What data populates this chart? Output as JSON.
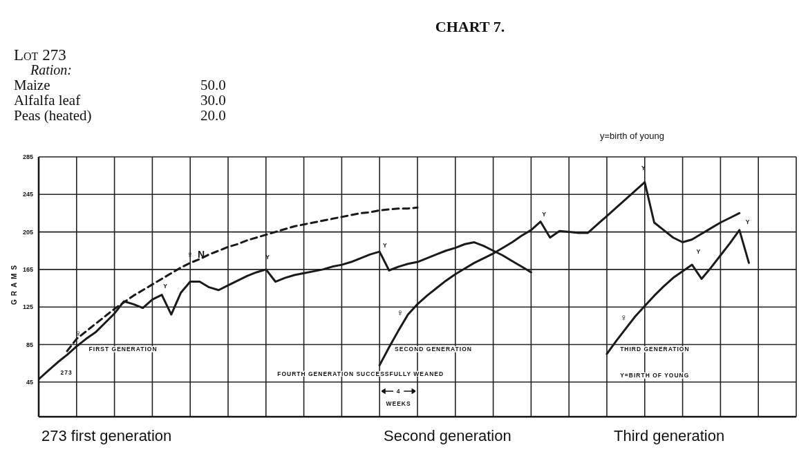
{
  "chart_data": {
    "type": "line",
    "title": "CHART 7.",
    "ylabel": "GRAMS",
    "categories": [
      null,
      null,
      null,
      null,
      null,
      null,
      null,
      null,
      null,
      null,
      null,
      null,
      null,
      null,
      null,
      null,
      null,
      null,
      null,
      null,
      null,
      null,
      null,
      null,
      null,
      null,
      null,
      null,
      null,
      null,
      null,
      null,
      null,
      null,
      null,
      null,
      null,
      null,
      null,
      null,
      null,
      null,
      null,
      null,
      null,
      null,
      null,
      null,
      null,
      null,
      null,
      null,
      null,
      null,
      null,
      null,
      null,
      null,
      null,
      null,
      null,
      null,
      null,
      null,
      null,
      null,
      null,
      null,
      null,
      null,
      null,
      null,
      null,
      null,
      null,
      null,
      null,
      null,
      null,
      null,
      null
    ],
    "series": [
      {
        "color": "#1a1a1a",
        "values": [
          48,
          57,
          66,
          74,
          83,
          91,
          98,
          108,
          118,
          131,
          128,
          124,
          133,
          138,
          117,
          140,
          152,
          152,
          146,
          143,
          148,
          153,
          158,
          162,
          165,
          152,
          156,
          159,
          161,
          163,
          165,
          168,
          170,
          173,
          177,
          181,
          184,
          164,
          168,
          171,
          173,
          177,
          181,
          185,
          188,
          192,
          194,
          190,
          185,
          180,
          174,
          168,
          162,
          null,
          null,
          null,
          null,
          null,
          null,
          null,
          null,
          null,
          null,
          null,
          null,
          null,
          null,
          null,
          null,
          null,
          null,
          null,
          null,
          null,
          null,
          null,
          null,
          null,
          null,
          null,
          null
        ]
      },
      {
        "color": "#1a1a1a",
        "line_style": "dashed",
        "values": [
          null,
          null,
          null,
          78,
          91,
          99,
          107,
          115,
          123,
          130,
          137,
          143,
          149,
          155,
          161,
          167,
          172,
          176,
          181,
          185,
          189,
          192,
          196,
          199,
          202,
          205,
          208,
          211,
          213,
          215,
          217,
          219,
          221,
          223,
          225,
          226,
          228,
          229,
          230,
          230,
          231,
          null,
          null,
          null,
          null,
          null,
          null,
          null,
          null,
          null,
          null,
          null,
          null,
          null,
          null,
          null,
          null,
          null,
          null,
          null,
          null,
          null,
          null,
          null,
          null,
          null,
          null,
          null,
          null,
          null,
          null,
          null,
          null,
          null,
          null,
          null,
          null,
          null,
          null,
          null,
          null
        ]
      },
      {
        "color": "#1a1a1a",
        "values": [
          null,
          null,
          null,
          null,
          null,
          null,
          null,
          null,
          null,
          null,
          null,
          null,
          null,
          null,
          null,
          null,
          null,
          null,
          null,
          null,
          null,
          null,
          null,
          null,
          null,
          null,
          null,
          null,
          null,
          null,
          null,
          null,
          null,
          null,
          null,
          null,
          63,
          82,
          100,
          117,
          128,
          137,
          145,
          153,
          160,
          166,
          172,
          177,
          182,
          188,
          194,
          201,
          207,
          216,
          199,
          206,
          205,
          204,
          204,
          213,
          222,
          231,
          240,
          249,
          258,
          215,
          207,
          199,
          194,
          197,
          203,
          209,
          215,
          220,
          225,
          null,
          null,
          null,
          null,
          null,
          null
        ]
      },
      {
        "color": "#1a1a1a",
        "values": [
          null,
          null,
          null,
          null,
          null,
          null,
          null,
          null,
          null,
          null,
          null,
          null,
          null,
          null,
          null,
          null,
          null,
          null,
          null,
          null,
          null,
          null,
          null,
          null,
          null,
          null,
          null,
          null,
          null,
          null,
          null,
          null,
          null,
          null,
          null,
          null,
          null,
          null,
          null,
          null,
          null,
          null,
          null,
          null,
          null,
          null,
          null,
          null,
          null,
          null,
          null,
          null,
          null,
          null,
          null,
          null,
          null,
          null,
          null,
          null,
          75,
          89,
          102,
          115,
          126,
          137,
          147,
          156,
          163,
          170,
          155,
          167,
          180,
          193,
          207,
          172,
          null,
          null,
          null,
          null,
          null
        ]
      }
    ],
    "ylim": [
      8,
      285
    ],
    "yticks": [
      45,
      85,
      125,
      165,
      205,
      245,
      285
    ],
    "grid": true,
    "tick_labels": "y",
    "marker": "none",
    "line_style": "solid",
    "annotations": [
      "Lot 273",
      "Ration:",
      "Maize",
      "50.0",
      "Alfalfa leaf",
      "30.0",
      "Peas (heated)",
      "20.0",
      "y=birth of young",
      "273",
      "FIRST GENERATION",
      "SECOND GENERATION",
      "THIRD GENERATION",
      "FOURTH GENERATION SUCCESSFULLY WEANED",
      "4",
      "WEEKS",
      "Y=BIRTH OF YOUNG",
      "♀ N",
      "♀",
      "♀",
      "♀",
      "Y",
      "Y",
      "Y",
      "Y",
      "Y",
      "Y",
      "Y",
      "273 first generation",
      "Second generation",
      "Third generation"
    ]
  }
}
